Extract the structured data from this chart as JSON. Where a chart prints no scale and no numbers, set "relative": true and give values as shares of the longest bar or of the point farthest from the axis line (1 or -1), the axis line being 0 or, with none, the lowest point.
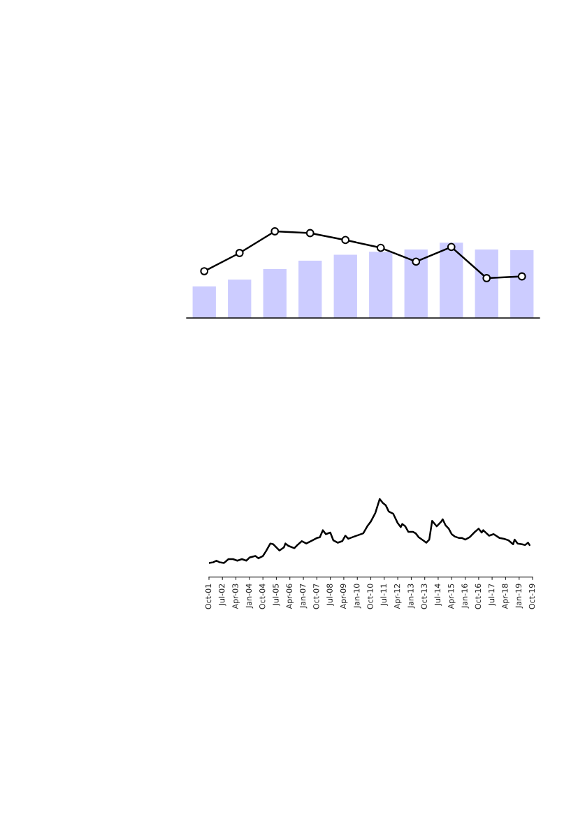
{
  "chart_data": [
    {
      "type": "bar",
      "relative": true,
      "tick_labels": false,
      "categories": [
        null,
        null,
        null,
        null,
        null,
        null,
        null,
        null,
        null,
        null
      ],
      "series": [
        {
          "color": "#ccccff",
          "values": [
            0.42,
            0.51,
            0.65,
            0.76,
            0.84,
            0.88,
            0.91,
            1.0,
            0.91,
            0.9
          ]
        }
      ]
    },
    {
      "type": "line",
      "relative": true,
      "tick_labels": false,
      "categories": [
        null,
        null,
        null,
        null,
        null,
        null,
        null,
        null,
        null,
        null
      ],
      "series": [
        {
          "color": "#000000",
          "marker": "circle",
          "values": [
            0.54,
            0.75,
            1.0,
            0.98,
            0.9,
            0.81,
            0.65,
            0.82,
            0.46,
            0.48
          ]
        }
      ]
    },
    {
      "type": "line",
      "relative": true,
      "tick_labels": "x",
      "xlim": [
        "2001-10",
        "2019-10"
      ],
      "xticks": [
        {
          "value": "2001-10",
          "label": "Oct-01"
        },
        {
          "value": "2002-07",
          "label": "Jul-02"
        },
        {
          "value": "2003-04",
          "label": "Apr-03"
        },
        {
          "value": "2004-01",
          "label": "Jan-04"
        },
        {
          "value": "2004-10",
          "label": "Oct-04"
        },
        {
          "value": "2005-07",
          "label": "Jul-05"
        },
        {
          "value": "2006-04",
          "label": "Apr-06"
        },
        {
          "value": "2007-01",
          "label": "Jan-07"
        },
        {
          "value": "2007-10",
          "label": "Oct-07"
        },
        {
          "value": "2008-07",
          "label": "Jul-08"
        },
        {
          "value": "2009-04",
          "label": "Apr-09"
        },
        {
          "value": "2010-01",
          "label": "Jan-10"
        },
        {
          "value": "2010-10",
          "label": "Oct-10"
        },
        {
          "value": "2011-07",
          "label": "Jul-11"
        },
        {
          "value": "2012-04",
          "label": "Apr-12"
        },
        {
          "value": "2013-01",
          "label": "Jan-13"
        },
        {
          "value": "2013-10",
          "label": "Oct-13"
        },
        {
          "value": "2014-07",
          "label": "Jul-14"
        },
        {
          "value": "2015-04",
          "label": "Apr-15"
        },
        {
          "value": "2016-01",
          "label": "Jan-16"
        },
        {
          "value": "2016-10",
          "label": "Oct-16"
        },
        {
          "value": "2017-07",
          "label": "Jul-17"
        },
        {
          "value": "2018-04",
          "label": "Apr-18"
        },
        {
          "value": "2019-01",
          "label": "Jan-19"
        },
        {
          "value": "2019-10",
          "label": "Oct-19"
        }
      ],
      "series": [
        {
          "color": "#000000",
          "x": [
            "2001-10",
            "2002-01",
            "2002-03",
            "2002-05",
            "2002-08",
            "2002-11",
            "2003-02",
            "2003-05",
            "2003-08",
            "2003-11",
            "2004-01",
            "2004-05",
            "2004-07",
            "2004-10",
            "2004-12",
            "2005-03",
            "2005-05",
            "2005-09",
            "2005-12",
            "2006-01",
            "2006-03",
            "2006-07",
            "2006-09",
            "2006-12",
            "2007-03",
            "2007-06",
            "2007-10",
            "2007-12",
            "2008-02",
            "2008-04",
            "2008-07",
            "2008-09",
            "2008-12",
            "2009-03",
            "2009-05",
            "2009-07",
            "2009-11",
            "2010-02",
            "2010-05",
            "2010-08",
            "2010-10",
            "2011-01",
            "2011-04",
            "2011-06",
            "2011-08",
            "2011-10",
            "2012-01",
            "2012-04",
            "2012-06",
            "2012-07",
            "2012-09",
            "2012-11",
            "2013-02",
            "2013-04",
            "2013-06",
            "2013-09",
            "2013-11",
            "2014-01",
            "2014-03",
            "2014-06",
            "2014-09",
            "2014-10",
            "2014-12",
            "2015-02",
            "2015-04",
            "2015-06",
            "2015-09",
            "2015-11",
            "2016-01",
            "2016-04",
            "2016-07",
            "2016-10",
            "2016-12",
            "2017-01",
            "2017-05",
            "2017-08",
            "2017-12",
            "2018-03",
            "2018-06",
            "2018-09",
            "2018-10",
            "2018-12",
            "2019-03",
            "2019-05",
            "2019-07",
            "2019-08"
          ],
          "values": [
            0.18,
            0.19,
            0.21,
            0.19,
            0.18,
            0.23,
            0.23,
            0.21,
            0.23,
            0.21,
            0.25,
            0.27,
            0.24,
            0.27,
            0.33,
            0.43,
            0.42,
            0.34,
            0.38,
            0.43,
            0.4,
            0.37,
            0.41,
            0.46,
            0.43,
            0.46,
            0.5,
            0.51,
            0.6,
            0.55,
            0.57,
            0.47,
            0.44,
            0.46,
            0.53,
            0.49,
            0.52,
            0.54,
            0.56,
            0.66,
            0.71,
            0.82,
            1.0,
            0.95,
            0.92,
            0.84,
            0.81,
            0.69,
            0.64,
            0.68,
            0.65,
            0.58,
            0.58,
            0.56,
            0.51,
            0.47,
            0.44,
            0.48,
            0.72,
            0.65,
            0.71,
            0.74,
            0.66,
            0.62,
            0.55,
            0.52,
            0.5,
            0.5,
            0.48,
            0.51,
            0.57,
            0.62,
            0.57,
            0.6,
            0.53,
            0.55,
            0.5,
            0.49,
            0.47,
            0.42,
            0.48,
            0.43,
            0.42,
            0.41,
            0.44,
            0.41
          ]
        }
      ]
    }
  ]
}
